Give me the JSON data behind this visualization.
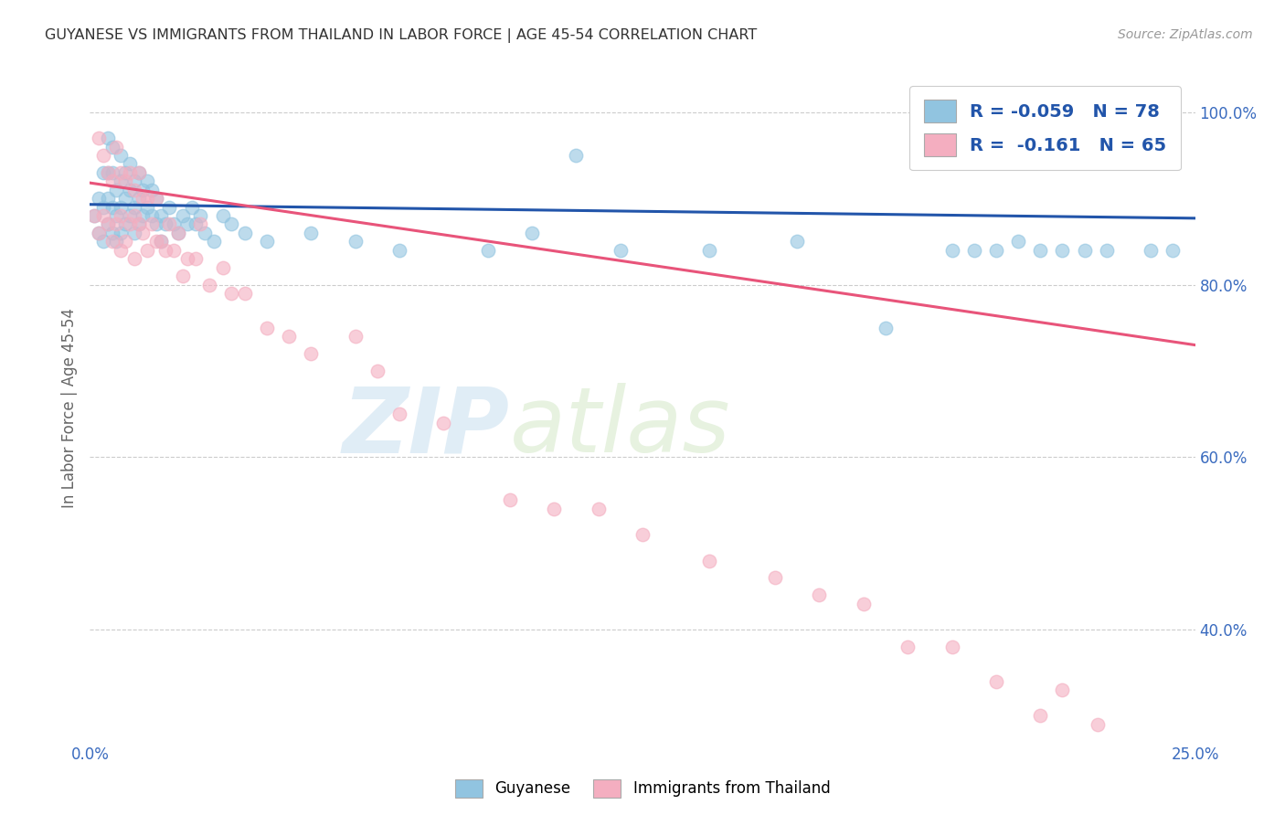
{
  "title": "GUYANESE VS IMMIGRANTS FROM THAILAND IN LABOR FORCE | AGE 45-54 CORRELATION CHART",
  "source": "Source: ZipAtlas.com",
  "ylabel": "In Labor Force | Age 45-54",
  "xlim": [
    0.0,
    0.25
  ],
  "ylim": [
    0.27,
    1.045
  ],
  "xticks": [
    0.0,
    0.05,
    0.1,
    0.15,
    0.2,
    0.25
  ],
  "yticks": [
    0.4,
    0.6,
    0.8,
    1.0
  ],
  "ytick_labels": [
    "40.0%",
    "60.0%",
    "80.0%",
    "100.0%"
  ],
  "xtick_labels_show": [
    "0.0%",
    "25.0%"
  ],
  "blue_color": "#91c4e0",
  "pink_color": "#f4aec0",
  "blue_line_color": "#2255aa",
  "pink_line_color": "#e8547a",
  "watermark_zip": "ZIP",
  "watermark_atlas": "atlas",
  "blue_scatter_x": [
    0.001,
    0.002,
    0.002,
    0.003,
    0.003,
    0.003,
    0.004,
    0.004,
    0.004,
    0.004,
    0.005,
    0.005,
    0.005,
    0.005,
    0.006,
    0.006,
    0.006,
    0.007,
    0.007,
    0.007,
    0.007,
    0.008,
    0.008,
    0.008,
    0.009,
    0.009,
    0.009,
    0.01,
    0.01,
    0.01,
    0.011,
    0.011,
    0.011,
    0.012,
    0.012,
    0.013,
    0.013,
    0.014,
    0.014,
    0.015,
    0.015,
    0.016,
    0.016,
    0.017,
    0.018,
    0.019,
    0.02,
    0.021,
    0.022,
    0.023,
    0.024,
    0.025,
    0.026,
    0.028,
    0.03,
    0.032,
    0.035,
    0.04,
    0.05,
    0.06,
    0.07,
    0.09,
    0.1,
    0.11,
    0.12,
    0.14,
    0.16,
    0.18,
    0.195,
    0.2,
    0.205,
    0.21,
    0.215,
    0.22,
    0.225,
    0.23,
    0.24,
    0.245
  ],
  "blue_scatter_y": [
    0.88,
    0.9,
    0.86,
    0.93,
    0.89,
    0.85,
    0.97,
    0.93,
    0.9,
    0.87,
    0.96,
    0.93,
    0.89,
    0.86,
    0.91,
    0.88,
    0.85,
    0.95,
    0.92,
    0.89,
    0.86,
    0.93,
    0.9,
    0.87,
    0.94,
    0.91,
    0.88,
    0.92,
    0.89,
    0.86,
    0.93,
    0.9,
    0.87,
    0.91,
    0.88,
    0.92,
    0.89,
    0.91,
    0.88,
    0.9,
    0.87,
    0.88,
    0.85,
    0.87,
    0.89,
    0.87,
    0.86,
    0.88,
    0.87,
    0.89,
    0.87,
    0.88,
    0.86,
    0.85,
    0.88,
    0.87,
    0.86,
    0.85,
    0.86,
    0.85,
    0.84,
    0.84,
    0.86,
    0.95,
    0.84,
    0.84,
    0.85,
    0.75,
    0.84,
    0.84,
    0.84,
    0.85,
    0.84,
    0.84,
    0.84,
    0.84,
    0.84,
    0.84
  ],
  "pink_scatter_x": [
    0.001,
    0.002,
    0.002,
    0.003,
    0.003,
    0.004,
    0.004,
    0.005,
    0.005,
    0.006,
    0.006,
    0.007,
    0.007,
    0.007,
    0.008,
    0.008,
    0.009,
    0.009,
    0.01,
    0.01,
    0.01,
    0.011,
    0.011,
    0.012,
    0.012,
    0.013,
    0.013,
    0.014,
    0.015,
    0.015,
    0.016,
    0.017,
    0.018,
    0.019,
    0.02,
    0.021,
    0.022,
    0.024,
    0.025,
    0.027,
    0.03,
    0.032,
    0.035,
    0.04,
    0.045,
    0.05,
    0.06,
    0.065,
    0.07,
    0.08,
    0.095,
    0.105,
    0.115,
    0.125,
    0.14,
    0.155,
    0.165,
    0.175,
    0.185,
    0.195,
    0.205,
    0.215,
    0.22,
    0.228,
    0.24
  ],
  "pink_scatter_y": [
    0.88,
    0.97,
    0.86,
    0.95,
    0.88,
    0.93,
    0.87,
    0.92,
    0.85,
    0.96,
    0.87,
    0.93,
    0.88,
    0.84,
    0.92,
    0.85,
    0.93,
    0.87,
    0.91,
    0.88,
    0.83,
    0.93,
    0.87,
    0.9,
    0.86,
    0.9,
    0.84,
    0.87,
    0.9,
    0.85,
    0.85,
    0.84,
    0.87,
    0.84,
    0.86,
    0.81,
    0.83,
    0.83,
    0.87,
    0.8,
    0.82,
    0.79,
    0.79,
    0.75,
    0.74,
    0.72,
    0.74,
    0.7,
    0.65,
    0.64,
    0.55,
    0.54,
    0.54,
    0.51,
    0.48,
    0.46,
    0.44,
    0.43,
    0.38,
    0.38,
    0.34,
    0.3,
    0.33,
    0.29,
    1.0
  ],
  "blue_trendline_x": [
    0.0,
    0.25
  ],
  "blue_trendline_y": [
    0.893,
    0.877
  ],
  "pink_trendline_x": [
    0.0,
    0.25
  ],
  "pink_trendline_y": [
    0.918,
    0.73
  ]
}
